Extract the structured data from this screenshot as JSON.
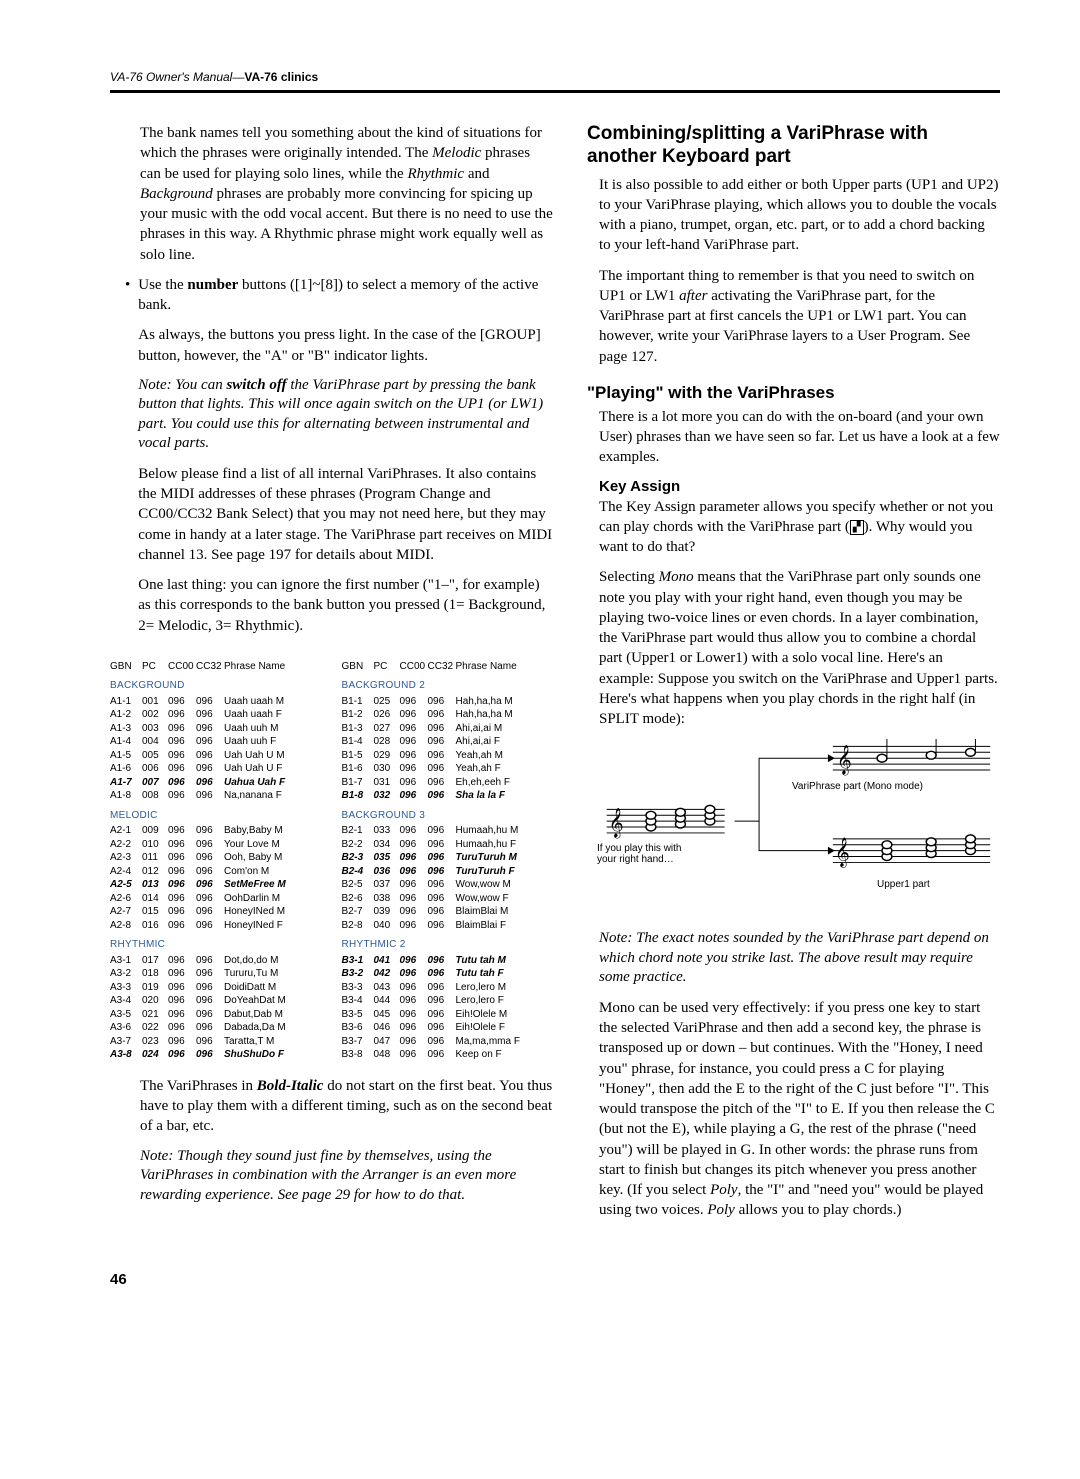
{
  "header": {
    "left_italic": "VA-76 Owner's Manual—",
    "left_bold": "VA-76 clinics"
  },
  "pagenum": "46",
  "left": {
    "p1": "The bank names tell you something about the kind of situations for which the phrases were originally intended. The Melodic phrases can be used for playing solo lines, while the Rhythmic and Background phrases are probably more convincing for spicing up your music with the odd vocal accent. But there is no need to use the phrases in this way. A Rhythmic phrase might work equally well as solo line.",
    "bullet1": "Use the number buttons ([1]~[8]) to select a memory of the active bank.",
    "bullet1b": "As always, the buttons you press light. In the case of the [GROUP] button, however, the \"A\" or \"B\" indicator lights.",
    "note1": "Note: You can switch off the VariPhrase part by pressing the bank button that lights. This will once again switch on the UP1 (or LW1) part. You could use this for alternating between instrumental and vocal parts.",
    "p2": "Below please find a list of all internal VariPhrases. It also contains the MIDI addresses of these phrases (Program Change and CC00/CC32 Bank Select) that you may not need here, but they may come in handy at a later stage. The VariPhrase part receives on MIDI channel 13. See page 197 for details about MIDI.",
    "p3": "One last thing: you can ignore the first number (\"1–\", for example) as this corresponds to the bank button you pressed (1= Background, 2= Melodic, 3= Rhythmic).",
    "p4": "The VariPhrases in Bold-Italic do not start on the first beat. You thus have to play them with a different timing, such as on the second beat of a bar, etc.",
    "note2": "Note: Though they sound just fine by themselves, using the VariPhrases in combination with the Arranger is an even more rewarding experience. See page 29 for how to do that.",
    "table_headers": {
      "gbn": "GBN",
      "pc": "PC",
      "cc00": "CC00",
      "cc32": "CC32",
      "name": "Phrase Name"
    },
    "tbl_left": [
      {
        "title": "BACKGROUND",
        "rows": [
          {
            "g": "A1-1",
            "p": "001",
            "c0": "096",
            "c3": "096",
            "n": "Uaah uaah M"
          },
          {
            "g": "A1-2",
            "p": "002",
            "c0": "096",
            "c3": "096",
            "n": "Uaah uaah F"
          },
          {
            "g": "A1-3",
            "p": "003",
            "c0": "096",
            "c3": "096",
            "n": "Uaah uuh M"
          },
          {
            "g": "A1-4",
            "p": "004",
            "c0": "096",
            "c3": "096",
            "n": "Uaah uuh F"
          },
          {
            "g": "A1-5",
            "p": "005",
            "c0": "096",
            "c3": "096",
            "n": "Uah Uah U M"
          },
          {
            "g": "A1-6",
            "p": "006",
            "c0": "096",
            "c3": "096",
            "n": "Uah Uah U F"
          },
          {
            "g": "A1-7",
            "p": "007",
            "c0": "096",
            "c3": "096",
            "n": "Uahua Uah F",
            "b": true
          },
          {
            "g": "A1-8",
            "p": "008",
            "c0": "096",
            "c3": "096",
            "n": "Na,nanana F"
          }
        ]
      },
      {
        "title": "MELODIC",
        "rows": [
          {
            "g": "A2-1",
            "p": "009",
            "c0": "096",
            "c3": "096",
            "n": "Baby,Baby M"
          },
          {
            "g": "A2-2",
            "p": "010",
            "c0": "096",
            "c3": "096",
            "n": "Your Love M"
          },
          {
            "g": "A2-3",
            "p": "011",
            "c0": "096",
            "c3": "096",
            "n": "Ooh, Baby M"
          },
          {
            "g": "A2-4",
            "p": "012",
            "c0": "096",
            "c3": "096",
            "n": "Com'on   M"
          },
          {
            "g": "A2-5",
            "p": "013",
            "c0": "096",
            "c3": "096",
            "n": "SetMeFree M",
            "b": true
          },
          {
            "g": "A2-6",
            "p": "014",
            "c0": "096",
            "c3": "096",
            "n": "OohDarlin M"
          },
          {
            "g": "A2-7",
            "p": "015",
            "c0": "096",
            "c3": "096",
            "n": "HoneyINed M"
          },
          {
            "g": "A2-8",
            "p": "016",
            "c0": "096",
            "c3": "096",
            "n": "HoneyINed F"
          }
        ]
      },
      {
        "title": "RHYTHMIC",
        "rows": [
          {
            "g": "A3-1",
            "p": "017",
            "c0": "096",
            "c3": "096",
            "n": "Dot,do,do M"
          },
          {
            "g": "A3-2",
            "p": "018",
            "c0": "096",
            "c3": "096",
            "n": "Tururu,Tu M"
          },
          {
            "g": "A3-3",
            "p": "019",
            "c0": "096",
            "c3": "096",
            "n": "DoidiDatt M"
          },
          {
            "g": "A3-4",
            "p": "020",
            "c0": "096",
            "c3": "096",
            "n": "DoYeahDat M"
          },
          {
            "g": "A3-5",
            "p": "021",
            "c0": "096",
            "c3": "096",
            "n": "Dabut,Dab M"
          },
          {
            "g": "A3-6",
            "p": "022",
            "c0": "096",
            "c3": "096",
            "n": "Dabada,Da M"
          },
          {
            "g": "A3-7",
            "p": "023",
            "c0": "096",
            "c3": "096",
            "n": "Taratta,T M"
          },
          {
            "g": "A3-8",
            "p": "024",
            "c0": "096",
            "c3": "096",
            "n": "ShuShuDo F",
            "b": true
          }
        ]
      }
    ],
    "tbl_right": [
      {
        "title": "BACKGROUND 2",
        "rows": [
          {
            "g": "B1-1",
            "p": "025",
            "c0": "096",
            "c3": "096",
            "n": "Hah,ha,ha M"
          },
          {
            "g": "B1-2",
            "p": "026",
            "c0": "096",
            "c3": "096",
            "n": "Hah,ha,ha M"
          },
          {
            "g": "B1-3",
            "p": "027",
            "c0": "096",
            "c3": "096",
            "n": "Ahi,ai,ai M"
          },
          {
            "g": "B1-4",
            "p": "028",
            "c0": "096",
            "c3": "096",
            "n": "Ahi,ai,ai F"
          },
          {
            "g": "B1-5",
            "p": "029",
            "c0": "096",
            "c3": "096",
            "n": "Yeah,ah   M"
          },
          {
            "g": "B1-6",
            "p": "030",
            "c0": "096",
            "c3": "096",
            "n": "Yeah,ah   F"
          },
          {
            "g": "B1-7",
            "p": "031",
            "c0": "096",
            "c3": "096",
            "n": "Eh,eh,eeh F"
          },
          {
            "g": "B1-8",
            "p": "032",
            "c0": "096",
            "c3": "096",
            "n": "Sha la la F",
            "b": true
          }
        ]
      },
      {
        "title": "BACKGROUND 3",
        "rows": [
          {
            "g": "B2-1",
            "p": "033",
            "c0": "096",
            "c3": "096",
            "n": "Humaah,hu M"
          },
          {
            "g": "B2-2",
            "p": "034",
            "c0": "096",
            "c3": "096",
            "n": "Humaah,hu F"
          },
          {
            "g": "B2-3",
            "p": "035",
            "c0": "096",
            "c3": "096",
            "n": "TuruTuruh M",
            "b": true
          },
          {
            "g": "B2-4",
            "p": "036",
            "c0": "096",
            "c3": "096",
            "n": "TuruTuruh F",
            "b": true
          },
          {
            "g": "B2-5",
            "p": "037",
            "c0": "096",
            "c3": "096",
            "n": "Wow,wow M"
          },
          {
            "g": "B2-6",
            "p": "038",
            "c0": "096",
            "c3": "096",
            "n": "Wow,wow  F"
          },
          {
            "g": "B2-7",
            "p": "039",
            "c0": "096",
            "c3": "096",
            "n": "BlaimBlai M"
          },
          {
            "g": "B2-8",
            "p": "040",
            "c0": "096",
            "c3": "096",
            "n": "BlaimBlai F"
          }
        ]
      },
      {
        "title": "RHYTHMIC 2",
        "rows": [
          {
            "g": "B3-1",
            "p": "041",
            "c0": "096",
            "c3": "096",
            "n": "Tutu tah  M",
            "b": true
          },
          {
            "g": "B3-2",
            "p": "042",
            "c0": "096",
            "c3": "096",
            "n": "Tutu tah  F",
            "b": true
          },
          {
            "g": "B3-3",
            "p": "043",
            "c0": "096",
            "c3": "096",
            "n": "Lero,lero M"
          },
          {
            "g": "B3-4",
            "p": "044",
            "c0": "096",
            "c3": "096",
            "n": "Lero,lero F"
          },
          {
            "g": "B3-5",
            "p": "045",
            "c0": "096",
            "c3": "096",
            "n": "Eih!Olele M"
          },
          {
            "g": "B3-6",
            "p": "046",
            "c0": "096",
            "c3": "096",
            "n": "Eih!Olele F"
          },
          {
            "g": "B3-7",
            "p": "047",
            "c0": "096",
            "c3": "096",
            "n": "Ma,ma,mma F"
          },
          {
            "g": "B3-8",
            "p": "048",
            "c0": "096",
            "c3": "096",
            "n": "Keep on F"
          }
        ]
      }
    ]
  },
  "right": {
    "h2a": "Combining/splitting a VariPhrase with another Keyboard part",
    "p1": "It is also possible to add either or both Upper parts (UP1 and UP2) to your VariPhrase playing, which allows you to double the vocals with a piano, trumpet, organ, etc. part, or to add a chord backing to your left-hand VariPhrase part.",
    "p2": "The important thing to remember is that you need to switch on UP1 or LW1 after activating the VariPhrase part, for the VariPhrase part at first cancels the UP1 or LW1 part. You can however, write your VariPhrase layers to a User Program. See page 127.",
    "h2b": "\"Playing\" with the VariPhrases",
    "p3": "There is a lot more you can do with the on-board (and your own User) phrases than we have seen so far. Let us have a look at a few examples.",
    "h4a": "Key Assign",
    "p4a": "The Key Assign parameter allows you specify whether or not you can play chords with the VariPhrase part (",
    "p4b": "). Why would you want to do that?",
    "p5": "Selecting Mono means that the VariPhrase part only sounds one note you play with your right hand, even though you may be playing two-voice lines or even chords. In a layer combination, the VariPhrase part would thus allow you to combine a chordal part (Upper1 or Lower1) with a solo vocal line. Here's an example: Suppose you switch on the VariPhrase and Upper1 parts. Here's what happens when you play chords in the right half (in SPLIT mode):",
    "img_anno1": "VariPhrase part (Mono mode)",
    "img_anno2a": "If you play this with",
    "img_anno2b": "your right hand…",
    "img_anno3": "Upper1 part",
    "note1": "Note: The exact notes sounded by the VariPhrase part depend on which chord note you strike last. The above result may require some practice.",
    "p6": "Mono can be used very effectively: if you press one key to start the selected VariPhrase and then add a second key, the phrase is transposed up or down – but continues. With the \"Honey, I need you\" phrase, for instance, you could press a C for playing \"Honey\", then add the E to the right of the C just before \"I\". This would transpose the pitch of the \"I\" to E. If you then release the C (but not the E), while playing a G, the rest of the phrase (\"need you\") will be played in G. In other words: the phrase runs from start to finish but changes its pitch whenever you press another key. (If you select Poly, the \"I\" and \"need you\" would be played using two voices. Poly allows you to play chords.)"
  }
}
